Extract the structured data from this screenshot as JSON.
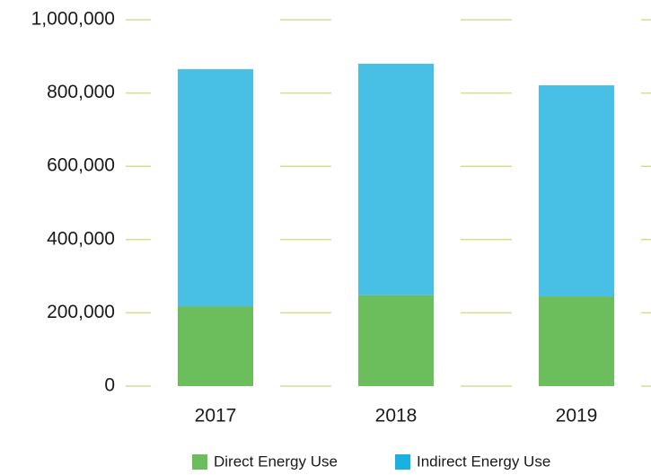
{
  "chart_data": {
    "type": "stacked_bar",
    "categories": [
      "2017",
      "2018",
      "2019"
    ],
    "series": [
      {
        "name": "Direct Energy Use",
        "color": "#6cbd5c",
        "values": [
          218000,
          248000,
          245000
        ]
      },
      {
        "name": "Indirect Energy Use",
        "color": "#1ab0e0",
        "values": [
          647000,
          632000,
          576000
        ]
      }
    ],
    "ylim": [
      0,
      1000000
    ],
    "yticks": [
      {
        "value": 0,
        "label": "0"
      },
      {
        "value": 200000,
        "label": "200,000"
      },
      {
        "value": 400000,
        "label": "400,000"
      },
      {
        "value": 600000,
        "label": "600,000"
      },
      {
        "value": 800000,
        "label": "800,000"
      },
      {
        "value": 1000000,
        "label": "1,000,000"
      }
    ],
    "grid": true
  }
}
